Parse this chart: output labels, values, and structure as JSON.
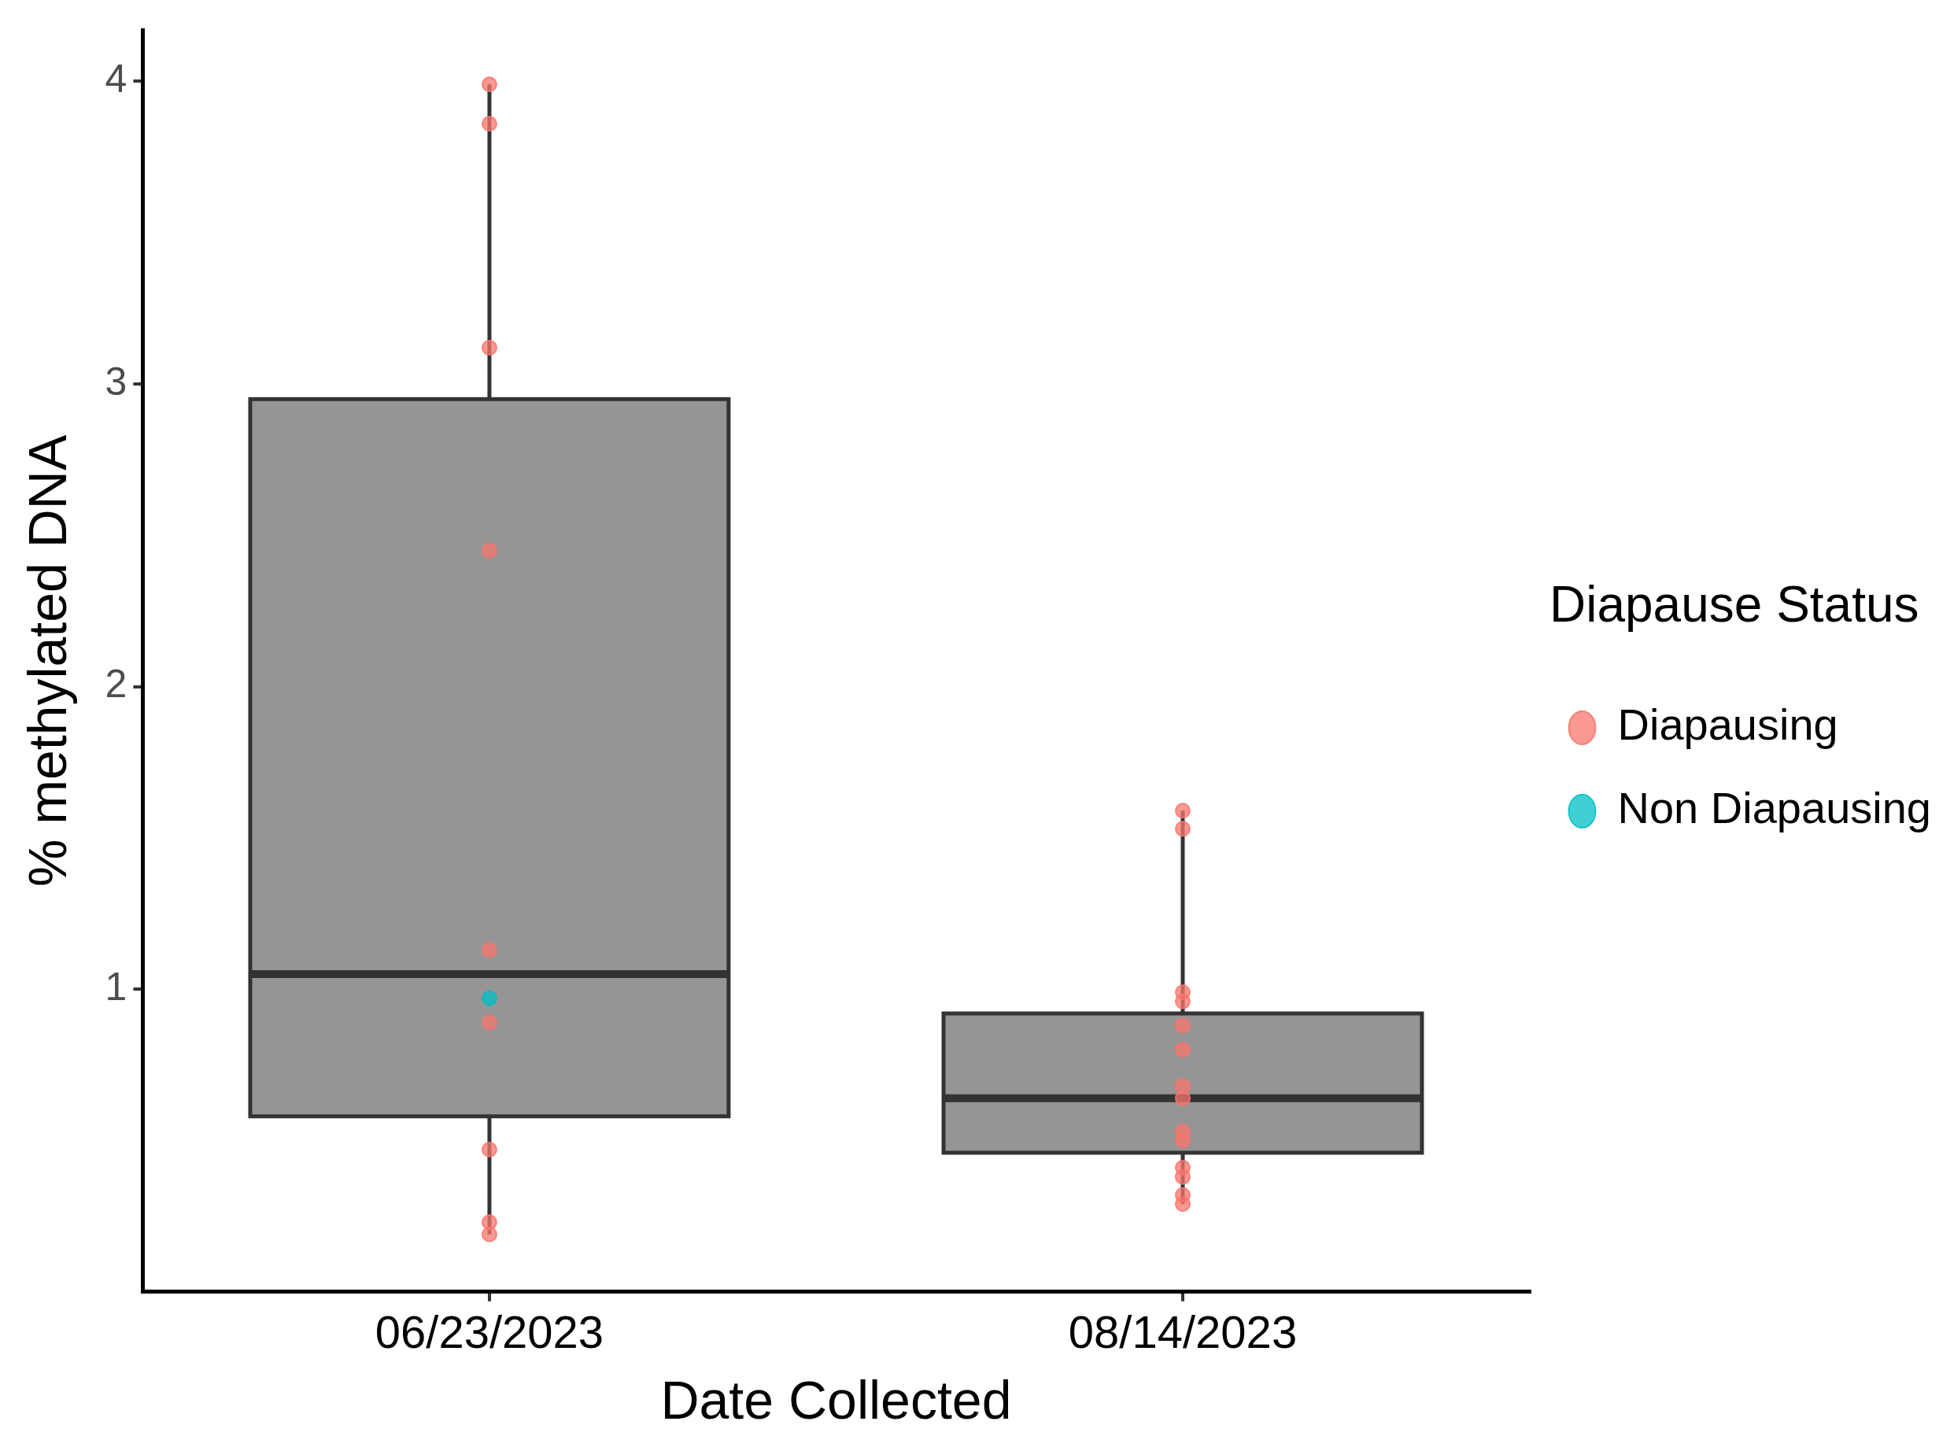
{
  "chart_data": {
    "type": "box",
    "xlabel": "Date Collected",
    "ylabel": "% methylated DNA",
    "legend_title": "Diapause Status",
    "categories": [
      "06/23/2023",
      "08/14/2023"
    ],
    "color": "#959595",
    "boxes": [
      {
        "low": 0.19,
        "q1": 0.58,
        "median": 1.05,
        "q3": 2.95,
        "high": 3.99
      },
      {
        "low": 0.29,
        "q1": 0.46,
        "median": 0.64,
        "q3": 0.92,
        "high": 1.59
      }
    ],
    "ylim": [
      0,
      4.17
    ],
    "yticks": [
      1,
      2,
      3,
      4
    ],
    "grid": false,
    "legend": "right",
    "marker": "circle",
    "series": [
      {
        "type": "scatter",
        "name": "Diapausing",
        "color": "#f8766d",
        "x": [
          "06/23/2023",
          "06/23/2023",
          "06/23/2023",
          "06/23/2023",
          "06/23/2023",
          "06/23/2023",
          "06/23/2023",
          "06/23/2023",
          "06/23/2023",
          "08/14/2023",
          "08/14/2023",
          "08/14/2023",
          "08/14/2023",
          "08/14/2023",
          "08/14/2023",
          "08/14/2023",
          "08/14/2023",
          "08/14/2023",
          "08/14/2023",
          "08/14/2023",
          "08/14/2023",
          "08/14/2023",
          "08/14/2023"
        ],
        "values": [
          3.99,
          3.86,
          3.12,
          2.45,
          1.13,
          0.89,
          0.47,
          0.23,
          0.19,
          1.59,
          1.53,
          0.99,
          0.96,
          0.88,
          0.8,
          0.68,
          0.64,
          0.53,
          0.5,
          0.41,
          0.38,
          0.32,
          0.29
        ]
      },
      {
        "type": "scatter",
        "name": "Non Diapausing",
        "color": "#00bfc4",
        "x": [
          "06/23/2023"
        ],
        "values": [
          0.97
        ]
      }
    ]
  }
}
